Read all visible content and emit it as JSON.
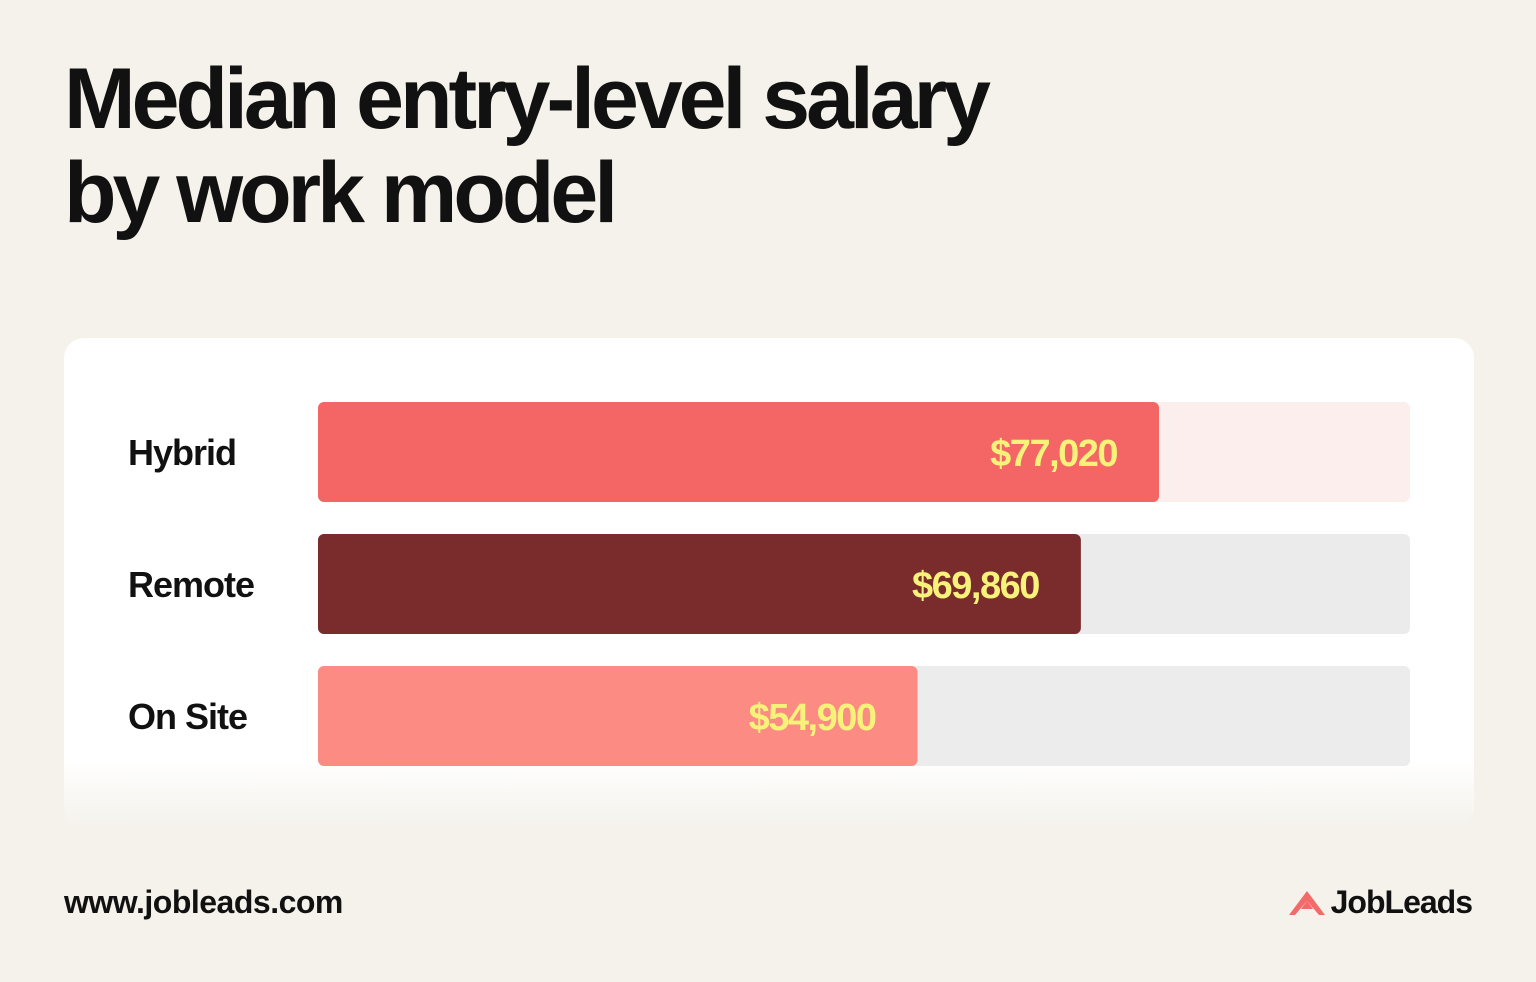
{
  "title_lines": [
    "Median entry-level salary",
    "by work model"
  ],
  "footer": {
    "url": "www.jobleads.com",
    "brand": "JobLeads"
  },
  "colors": {
    "background": "#f5f2ec",
    "card": "#ffffff",
    "value_text": "#f7f27a",
    "brand_accent": "#f46a6a"
  },
  "chart_data": {
    "type": "bar",
    "orientation": "horizontal",
    "categories": [
      "Hybrid",
      "Remote",
      "On Site"
    ],
    "values": [
      77020,
      69860,
      54900
    ],
    "value_labels": [
      "$77,020",
      "$69,860",
      "$54,900"
    ],
    "bar_colors": [
      "#f46666",
      "#7a2b2c",
      "#fb8b83"
    ],
    "track_colors": [
      "#fdeeee",
      "#ebebeb",
      "#ececec"
    ],
    "xlim": [
      0,
      100000
    ],
    "grid": false,
    "legend": "none"
  }
}
